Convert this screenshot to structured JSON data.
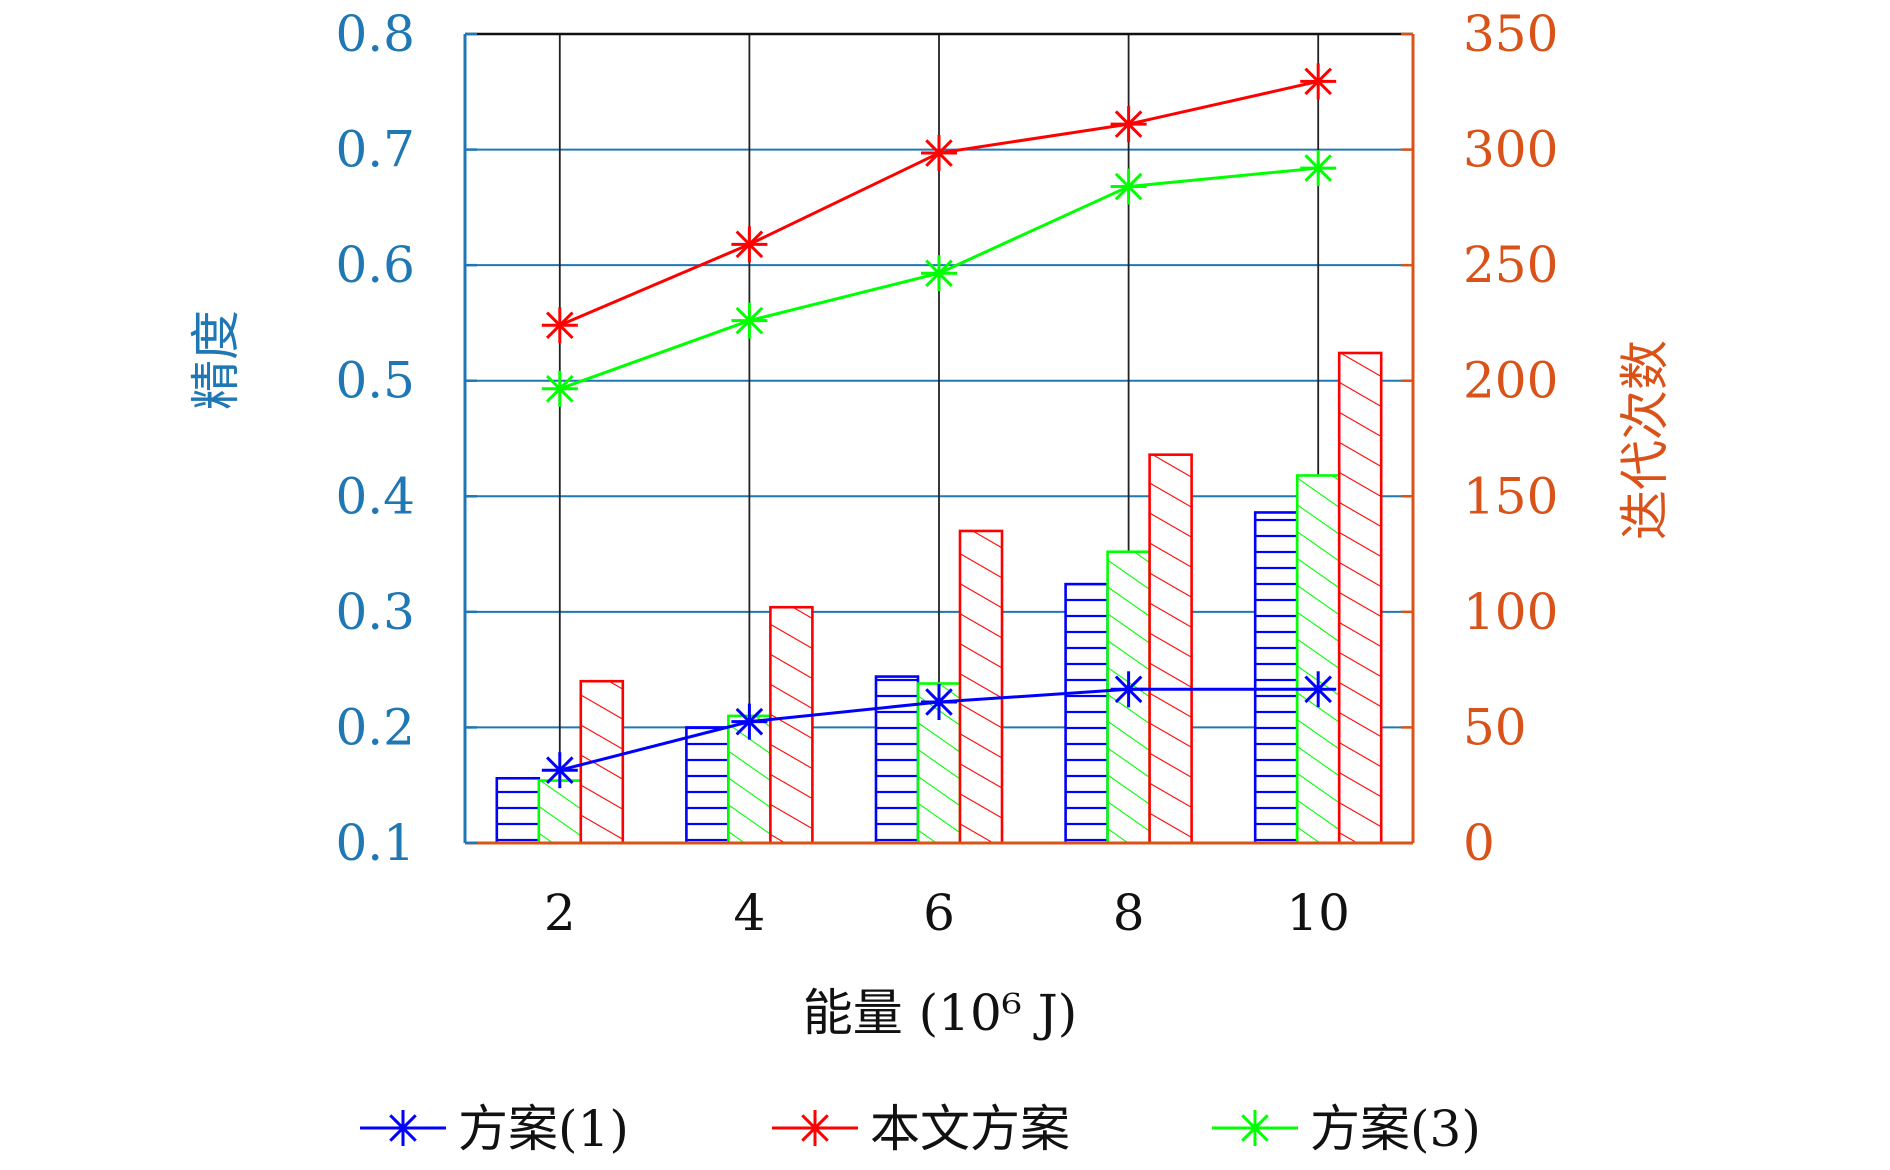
{
  "chart_data": {
    "type": "bar",
    "title": "",
    "xlabel": "能量 (10⁶ J)",
    "ylabel_left": "精度",
    "ylabel_right": "迭代次数",
    "categories": [
      "2",
      "4",
      "6",
      "8",
      "10"
    ],
    "x": [
      2,
      4,
      6,
      8,
      10
    ],
    "ylim_left": [
      0.1,
      0.8
    ],
    "yticks_left": [
      "0.1",
      "0.2",
      "0.3",
      "0.4",
      "0.5",
      "0.6",
      "0.7",
      "0.8"
    ],
    "ylim_right": [
      0,
      350
    ],
    "yticks_right": [
      "0",
      "50",
      "100",
      "150",
      "200",
      "250",
      "300",
      "350"
    ],
    "grid": true,
    "legend_position": "bottom",
    "colors": {
      "left_axis": "#1f77b4",
      "right_axis": "#d95319",
      "scheme1": "#0000ff",
      "proposed": "#ff0000",
      "scheme3": "#00ff00"
    },
    "bar_series": [
      {
        "name": "方案(1)",
        "axis": "right",
        "values": [
          28,
          50,
          72,
          112,
          143
        ]
      },
      {
        "name": "方案(3)",
        "axis": "right",
        "values": [
          27,
          55,
          69,
          126,
          159
        ]
      },
      {
        "name": "本文方案",
        "axis": "right",
        "values": [
          70,
          102,
          135,
          168,
          212
        ]
      }
    ],
    "line_series": [
      {
        "name": "方案(1)",
        "axis": "left",
        "values": [
          0.163,
          0.205,
          0.222,
          0.233,
          0.233
        ]
      },
      {
        "name": "本文方案",
        "axis": "left",
        "values": [
          0.548,
          0.618,
          0.697,
          0.722,
          0.759
        ]
      },
      {
        "name": "方案(3)",
        "axis": "left",
        "values": [
          0.493,
          0.552,
          0.593,
          0.668,
          0.684
        ]
      }
    ],
    "legend": [
      "方案(1)",
      "本文方案",
      "方案(3)"
    ]
  }
}
